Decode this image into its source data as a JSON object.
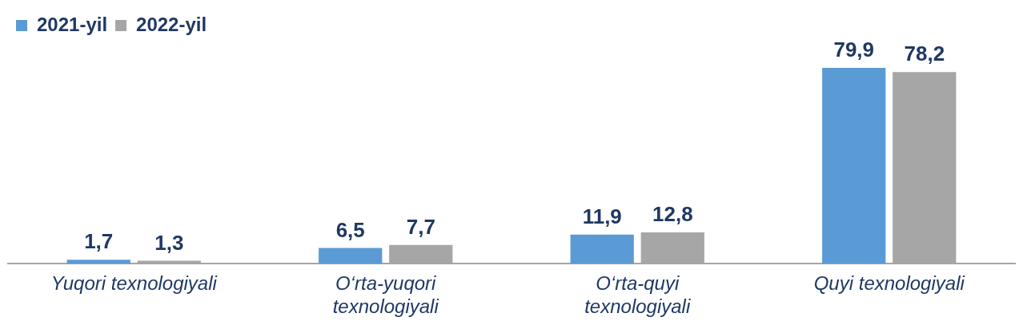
{
  "chart_data": {
    "type": "bar",
    "categories": [
      "Yuqori texnologiyali",
      "O‘rta-yuqori texnologiyali",
      "O‘rta-quyi texnologiyali",
      "Quyi texnologiyali"
    ],
    "series": [
      {
        "name": "2021-yil",
        "color": "#5b9bd5",
        "values": [
          1.7,
          6.5,
          11.9,
          79.9
        ],
        "value_labels": [
          "1,7",
          "6,5",
          "11,9",
          "79,9"
        ]
      },
      {
        "name": "2022-yil",
        "color": "#a6a6a6",
        "values": [
          1.3,
          7.7,
          12.8,
          78.2
        ],
        "value_labels": [
          "1,3",
          "7,7",
          "12,8",
          "78,2"
        ]
      }
    ],
    "legend": "top left",
    "grid": false
  }
}
